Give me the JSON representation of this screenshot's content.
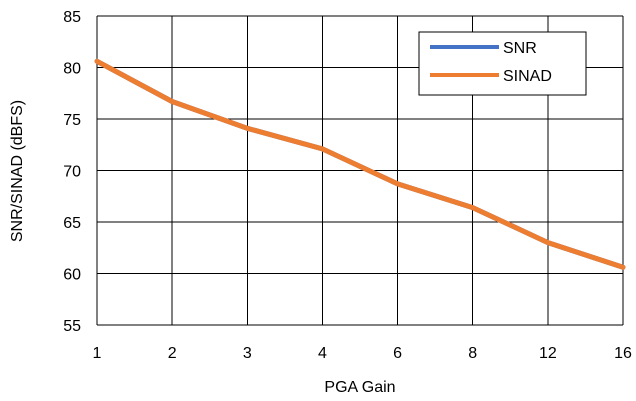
{
  "chart_data": {
    "type": "line",
    "categories": [
      "1",
      "2",
      "3",
      "4",
      "6",
      "8",
      "12",
      "16"
    ],
    "series": [
      {
        "name": "SNR",
        "color": "#4472C4",
        "values": [
          80.6,
          76.7,
          74.1,
          72.1,
          68.7,
          66.4,
          63.0,
          60.6
        ]
      },
      {
        "name": "SINAD",
        "color": "#ED7D31",
        "values": [
          80.6,
          76.7,
          74.1,
          72.1,
          68.7,
          66.4,
          63.0,
          60.6
        ]
      }
    ],
    "xlabel": "PGA Gain",
    "ylabel": "SNR/SINAD (dBFS)",
    "ylim": [
      55,
      85
    ],
    "yticks": [
      55,
      60,
      65,
      70,
      75,
      80,
      85
    ],
    "grid": true,
    "legend_position": "top-right"
  }
}
